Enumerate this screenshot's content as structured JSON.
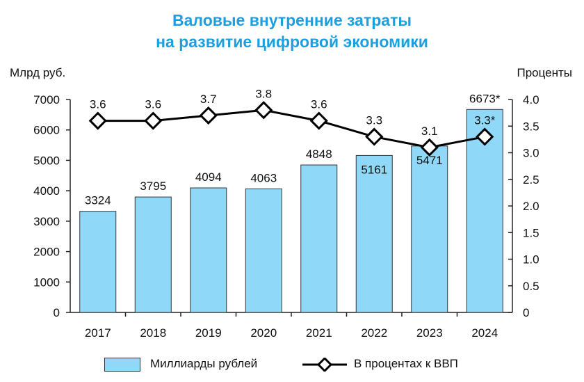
{
  "chart_data": {
    "type": "bar+line",
    "title": [
      "Валовые внутренние затраты",
      "на развитие цифровой экономики"
    ],
    "ylabel_left": "Млрд руб.",
    "ylabel_right": "Проценты",
    "categories": [
      "2017",
      "2018",
      "2019",
      "2020",
      "2021",
      "2022",
      "2023",
      "2024"
    ],
    "ylim_left": [
      0,
      7000
    ],
    "yticks_left": [
      "0",
      "1000",
      "2000",
      "3000",
      "4000",
      "5000",
      "6000",
      "7000"
    ],
    "ylim_right": [
      0,
      4.0
    ],
    "yticks_right": [
      "0",
      "0.5",
      "1.0",
      "1.5",
      "2.0",
      "2.5",
      "3.0",
      "3.5",
      "4.0"
    ],
    "grid": false,
    "legend_position": "bottom",
    "series": [
      {
        "name": "Миллиарды рублей",
        "type": "bar",
        "axis": "left",
        "color": "#8fd8f7",
        "values": [
          3324,
          3795,
          4094,
          4063,
          4848,
          5161,
          5471,
          6673
        ],
        "labels": [
          "3324",
          "3795",
          "4094",
          "4063",
          "4848",
          "5161",
          "5471",
          "6673*"
        ]
      },
      {
        "name": "В процентах к ВВП",
        "type": "line",
        "axis": "right",
        "color": "#000000",
        "marker": "diamond",
        "values": [
          3.6,
          3.6,
          3.7,
          3.8,
          3.6,
          3.3,
          3.1,
          3.3
        ],
        "labels": [
          "3.6",
          "3.6",
          "3.7",
          "3.8",
          "3.6",
          "3.3",
          "3.1",
          "3.3*"
        ]
      }
    ]
  }
}
